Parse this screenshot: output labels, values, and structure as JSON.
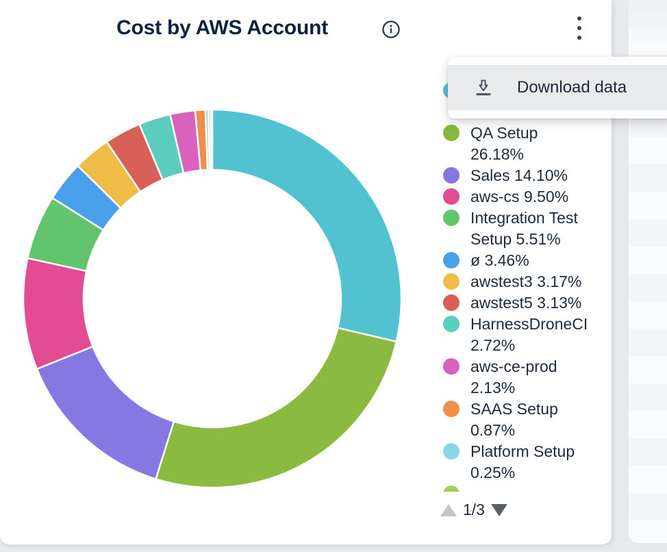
{
  "card": {
    "title": "Cost by AWS Account"
  },
  "menu": {
    "items": [
      {
        "label": "Download data",
        "icon": "download-icon"
      }
    ]
  },
  "legend": {
    "items": [
      {
        "color": "#52c2d1",
        "lines": [
          "",
          ""
        ]
      },
      {
        "color": "#87b73c",
        "lines": [
          "QA Setup",
          "26.18%"
        ]
      },
      {
        "color": "#8678e2",
        "lines": [
          "Sales 14.10%"
        ]
      },
      {
        "color": "#e34b92",
        "lines": [
          "aws-cs 9.50%"
        ]
      },
      {
        "color": "#62c56e",
        "lines": [
          "Integration Test",
          "Setup 5.51%"
        ]
      },
      {
        "color": "#4aa0ea",
        "lines": [
          "ø 3.46%"
        ]
      },
      {
        "color": "#f0bc48",
        "lines": [
          "awstest3 3.17%"
        ]
      },
      {
        "color": "#d96058",
        "lines": [
          "awstest5 3.13%"
        ]
      },
      {
        "color": "#5bcdbf",
        "lines": [
          "HarnessDroneCI",
          "2.72%"
        ]
      },
      {
        "color": "#d862be",
        "lines": [
          "aws-ce-prod",
          "2.13%"
        ]
      },
      {
        "color": "#ef8f4a",
        "lines": [
          "SAAS Setup",
          "0.87%"
        ]
      },
      {
        "color": "#86d8e6",
        "lines": [
          "Platform Setup",
          "0.25%"
        ]
      },
      {
        "color": "#a9cc5f",
        "lines": [
          ""
        ]
      }
    ],
    "pagination": {
      "page_label": "1/3"
    }
  },
  "chart_data": {
    "type": "pie",
    "subtype": "donut",
    "title": "Cost by AWS Account",
    "units": "%",
    "legend_position": "right",
    "inner_radius_ratio": 0.68,
    "slices": [
      {
        "label": "",
        "value": 28.65,
        "color": "#52c2d1"
      },
      {
        "label": "QA Setup",
        "value": 26.18,
        "color": "#8aba3f"
      },
      {
        "label": "Sales",
        "value": 14.1,
        "color": "#8678e2"
      },
      {
        "label": "aws-cs",
        "value": 9.5,
        "color": "#e34b92"
      },
      {
        "label": "Integration Test Setup",
        "value": 5.51,
        "color": "#62c56e"
      },
      {
        "label": "ø",
        "value": 3.46,
        "color": "#4aa0ea"
      },
      {
        "label": "awstest3",
        "value": 3.17,
        "color": "#f0bc48"
      },
      {
        "label": "awstest5",
        "value": 3.13,
        "color": "#d96058"
      },
      {
        "label": "HarnessDroneCI",
        "value": 2.72,
        "color": "#5bcdbf"
      },
      {
        "label": "aws-ce-prod",
        "value": 2.13,
        "color": "#d862be"
      },
      {
        "label": "SAAS Setup",
        "value": 0.87,
        "color": "#ef8f4a"
      },
      {
        "label": "Platform Setup",
        "value": 0.25,
        "color": "#86d8e6"
      },
      {
        "label": "",
        "value": 0.2,
        "color": "#a9cc5f"
      },
      {
        "label": "",
        "value": 0.13,
        "color": "#55c8c0"
      }
    ]
  },
  "colors": {
    "title_text": "#0c2340",
    "legend_text": "#1e2b3c",
    "menu_hover_bg": "#e9ebed",
    "page_bg": "#e7e9ec",
    "card_bg": "#ffffff"
  }
}
